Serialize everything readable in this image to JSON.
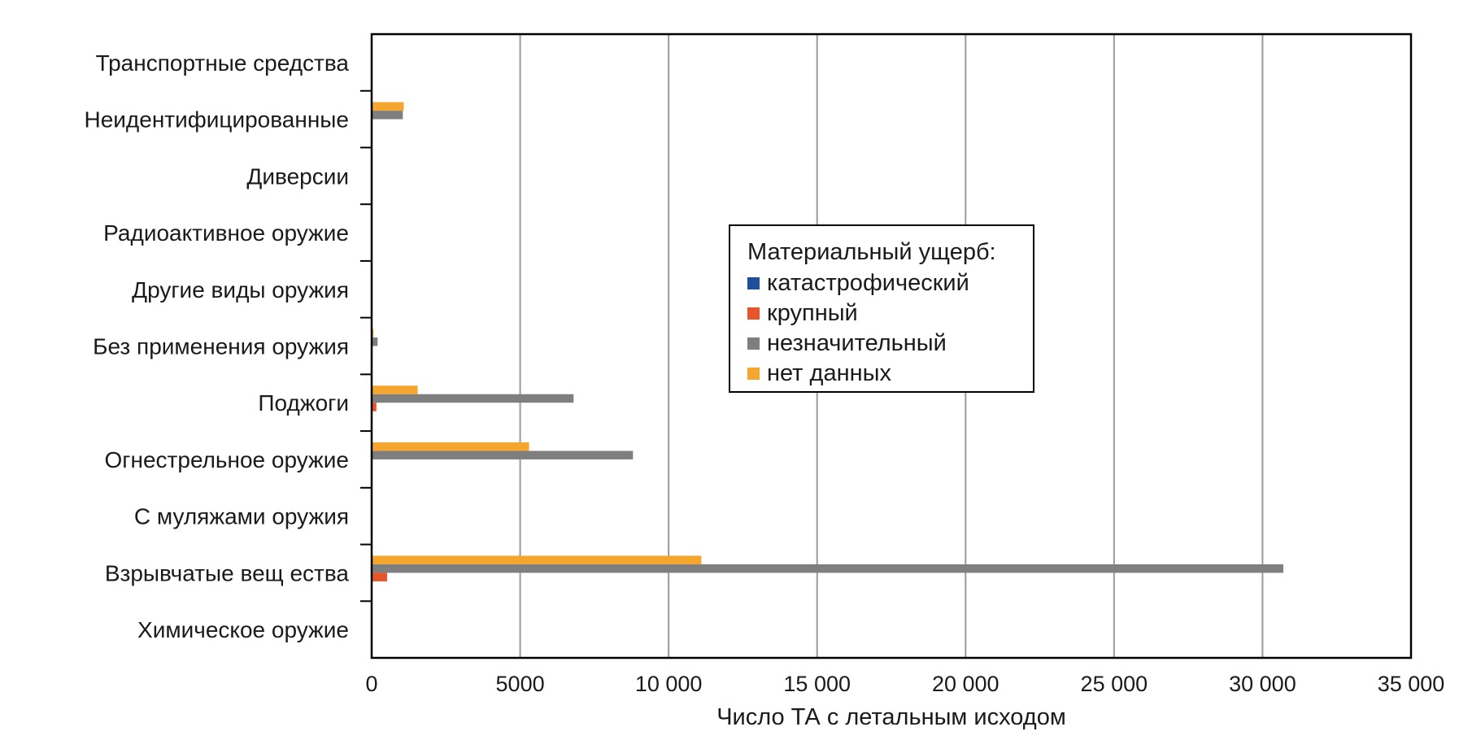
{
  "chart_data": {
    "type": "bar",
    "orientation": "horizontal",
    "categories": [
      "Транспортные средства",
      "Неидентифицированные",
      "Диверсии",
      "Радиоактивное оружие",
      "Другие виды оружия",
      "Без применения оружия",
      "Поджоги",
      "Огнестрельное оружие",
      "С муляжами оружия",
      "Взрывчатые вещ ества",
      "Химическое оружие"
    ],
    "series": [
      {
        "name": "катастрофический",
        "color": "#1f4e9c",
        "values": [
          0,
          0,
          0,
          0,
          0,
          0,
          0,
          0,
          0,
          0,
          0
        ]
      },
      {
        "name": "крупный",
        "color": "#e8542a",
        "values": [
          0,
          0,
          0,
          0,
          0,
          30,
          160,
          0,
          0,
          520,
          0
        ]
      },
      {
        "name": "незначительный",
        "color": "#7f7f7f",
        "values": [
          0,
          1050,
          0,
          0,
          0,
          200,
          6800,
          8800,
          0,
          30700,
          0
        ]
      },
      {
        "name": "нет данных",
        "color": "#f5a62e",
        "values": [
          0,
          1080,
          0,
          0,
          0,
          60,
          1550,
          5300,
          0,
          11100,
          0
        ]
      }
    ],
    "xlim": [
      0,
      35000
    ],
    "xticks": [
      0,
      5000,
      10000,
      15000,
      20000,
      25000,
      30000,
      35000
    ],
    "xtick_labels": [
      "0",
      "5000",
      "10 000",
      "15 000",
      "20 000",
      "25 000",
      "30 000",
      "35 000"
    ],
    "xlabel": "Число ТА с летальным исходом",
    "ylabel": "",
    "grid": "vertical",
    "legend": {
      "title": "Материальный ущерб:",
      "position": "center"
    }
  }
}
